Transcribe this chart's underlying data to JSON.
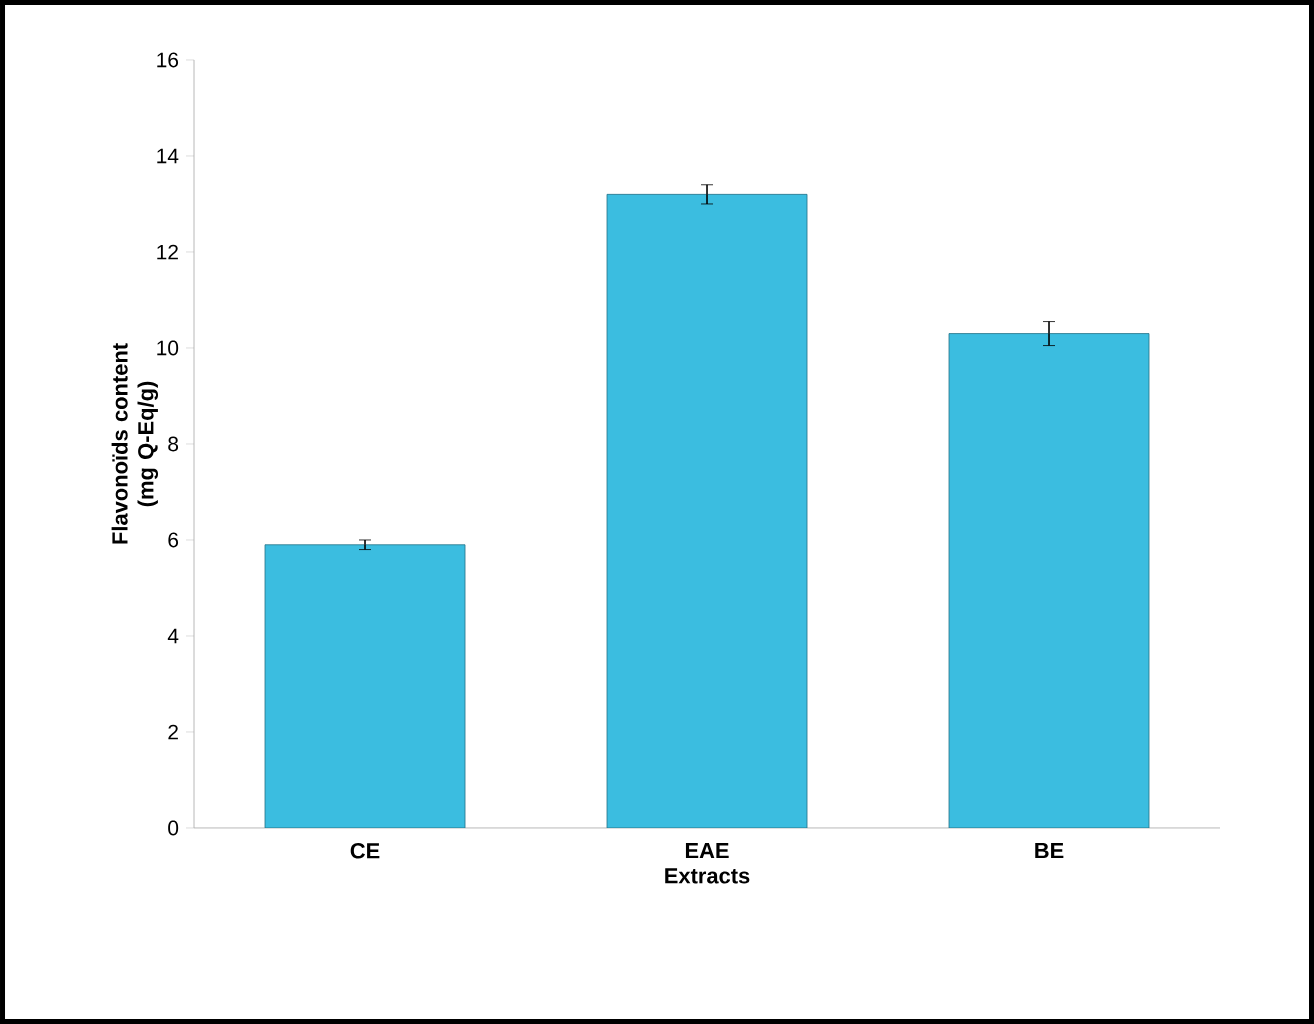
{
  "chart_data": {
    "type": "bar",
    "xlabel": "Extracts",
    "ylabel": "Flavonoïds  content (mg Q-Eq/g)",
    "categories": [
      "CE",
      "EAE",
      "BE"
    ],
    "values": [
      5.9,
      13.2,
      10.3
    ],
    "errors": [
      0.1,
      0.2,
      0.25
    ],
    "color": "#3bbde0",
    "ylim": [
      0,
      16
    ],
    "yticks": [
      0,
      2,
      4,
      6,
      8,
      10,
      12,
      14,
      16
    ],
    "grid": false
  }
}
